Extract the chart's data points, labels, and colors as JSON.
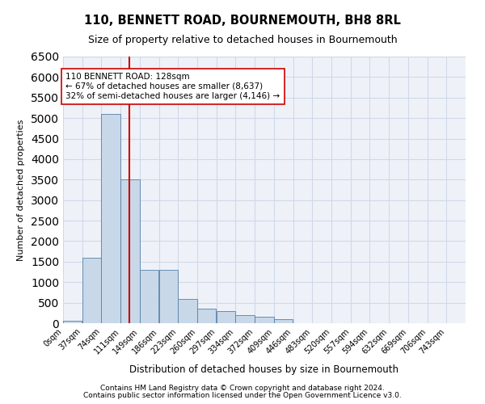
{
  "title1": "110, BENNETT ROAD, BOURNEMOUTH, BH8 8RL",
  "title2": "Size of property relative to detached houses in Bournemouth",
  "xlabel": "Distribution of detached houses by size in Bournemouth",
  "ylabel": "Number of detached properties",
  "footnote1": "Contains HM Land Registry data © Crown copyright and database right 2024.",
  "footnote2": "Contains public sector information licensed under the Open Government Licence v3.0.",
  "annotation_line1": "110 BENNETT ROAD: 128sqm",
  "annotation_line2": "← 67% of detached houses are smaller (8,637)",
  "annotation_line3": "32% of semi-detached houses are larger (4,146) →",
  "bar_color": "#c8d8e8",
  "bar_edge_color": "#5580aa",
  "grid_color": "#d0d8e8",
  "background_color": "#eef2f8",
  "red_line_color": "#cc0000",
  "bin_labels": [
    "0sqm",
    "37sqm",
    "74sqm",
    "111sqm",
    "149sqm",
    "186sqm",
    "223sqm",
    "260sqm",
    "297sqm",
    "334sqm",
    "372sqm",
    "409sqm",
    "446sqm",
    "483sqm",
    "520sqm",
    "557sqm",
    "594sqm",
    "632sqm",
    "669sqm",
    "706sqm",
    "743sqm"
  ],
  "values": [
    50,
    1600,
    5100,
    3500,
    1300,
    1300,
    600,
    350,
    300,
    200,
    150,
    100,
    0,
    0,
    0,
    0,
    0,
    0,
    0,
    0,
    0
  ],
  "bin_width": 37,
  "property_size": 128,
  "ylim": [
    0,
    6500
  ],
  "yticks": [
    0,
    500,
    1000,
    1500,
    2000,
    2500,
    3000,
    3500,
    4000,
    4500,
    5000,
    5500,
    6000,
    6500
  ]
}
